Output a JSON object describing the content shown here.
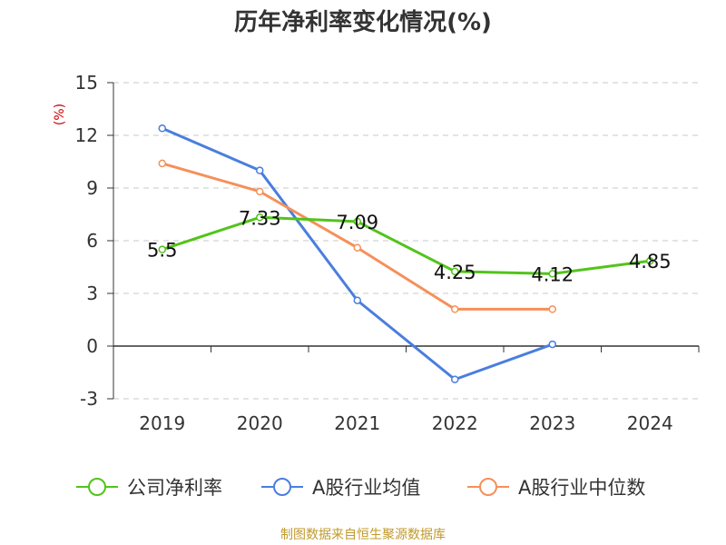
{
  "chart_data": {
    "type": "line",
    "title": "历年净利率变化情况(%)",
    "ylabel": "(%)",
    "xlabel": "",
    "categories": [
      "2019",
      "2020",
      "2021",
      "2022",
      "2023",
      "2024"
    ],
    "ylim": [
      -3,
      15
    ],
    "yticks": [
      15,
      12,
      9,
      6,
      3,
      0,
      -3
    ],
    "grid": true,
    "legend_position": "bottom",
    "series": [
      {
        "name": "公司净利率",
        "color": "#52c41a",
        "values": [
          5.5,
          7.33,
          7.09,
          4.25,
          4.12,
          4.85
        ],
        "labels": [
          "5.5",
          "7.33",
          "7.09",
          "4.25",
          "4.12",
          "4.85"
        ]
      },
      {
        "name": "A股行业均值",
        "color": "#4a7ede",
        "values": [
          12.4,
          10.0,
          2.6,
          -1.9,
          0.1,
          null
        ]
      },
      {
        "name": "A股行业中位数",
        "color": "#f5905a",
        "values": [
          10.4,
          8.8,
          5.6,
          2.1,
          2.1,
          null
        ]
      }
    ]
  },
  "source": "制图数据来自恒生聚源数据库"
}
